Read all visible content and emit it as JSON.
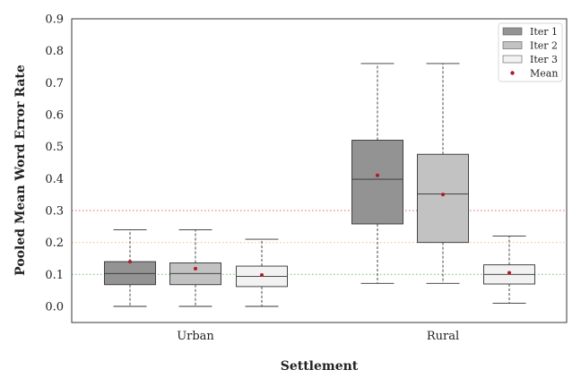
{
  "chart_data": {
    "type": "box",
    "xlabel": "Settlement",
    "ylabel": "Pooled Mean Word Error Rate",
    "categories": [
      "Urban",
      "Rural"
    ],
    "ylim": [
      -0.05,
      0.9
    ],
    "yticks": [
      0.0,
      0.1,
      0.2,
      0.3,
      0.4,
      0.5,
      0.6,
      0.7,
      0.8,
      0.9
    ],
    "ytick_labels": [
      "0.0",
      "0.1",
      "0.2",
      "0.3",
      "0.4",
      "0.5",
      "0.6",
      "0.7",
      "0.8",
      "0.9"
    ],
    "grid": false,
    "legend_position": "top-right",
    "series": [
      {
        "name": "Iter 1",
        "color": "#939393",
        "boxes": [
          {
            "category": "Urban",
            "whisker_low": 0.0,
            "q1": 0.068,
            "median": 0.103,
            "q3": 0.14,
            "whisker_high": 0.24,
            "mean": 0.14
          },
          {
            "category": "Rural",
            "whisker_low": 0.072,
            "q1": 0.258,
            "median": 0.398,
            "q3": 0.52,
            "whisker_high": 0.76,
            "mean": 0.41
          }
        ]
      },
      {
        "name": "Iter 2",
        "color": "#c2c2c2",
        "boxes": [
          {
            "category": "Urban",
            "whisker_low": 0.0,
            "q1": 0.068,
            "median": 0.103,
            "q3": 0.136,
            "whisker_high": 0.24,
            "mean": 0.118
          },
          {
            "category": "Rural",
            "whisker_low": 0.072,
            "q1": 0.2,
            "median": 0.352,
            "q3": 0.476,
            "whisker_high": 0.76,
            "mean": 0.35
          }
        ]
      },
      {
        "name": "Iter 3",
        "color": "#f2f2f2",
        "boxes": [
          {
            "category": "Urban",
            "whisker_low": 0.0,
            "q1": 0.062,
            "median": 0.094,
            "q3": 0.126,
            "whisker_high": 0.21,
            "mean": 0.098
          },
          {
            "category": "Rural",
            "whisker_low": 0.01,
            "q1": 0.07,
            "median": 0.1,
            "q3": 0.13,
            "whisker_high": 0.22,
            "mean": 0.105
          }
        ]
      }
    ],
    "mean_marker": {
      "label": "Mean",
      "color": "#b2182b"
    },
    "reference_lines": [
      {
        "y": 0.3,
        "color": "#f08080"
      },
      {
        "y": 0.2,
        "color": "#f5c58a"
      },
      {
        "y": 0.1,
        "color": "#7ccc7c"
      }
    ]
  }
}
